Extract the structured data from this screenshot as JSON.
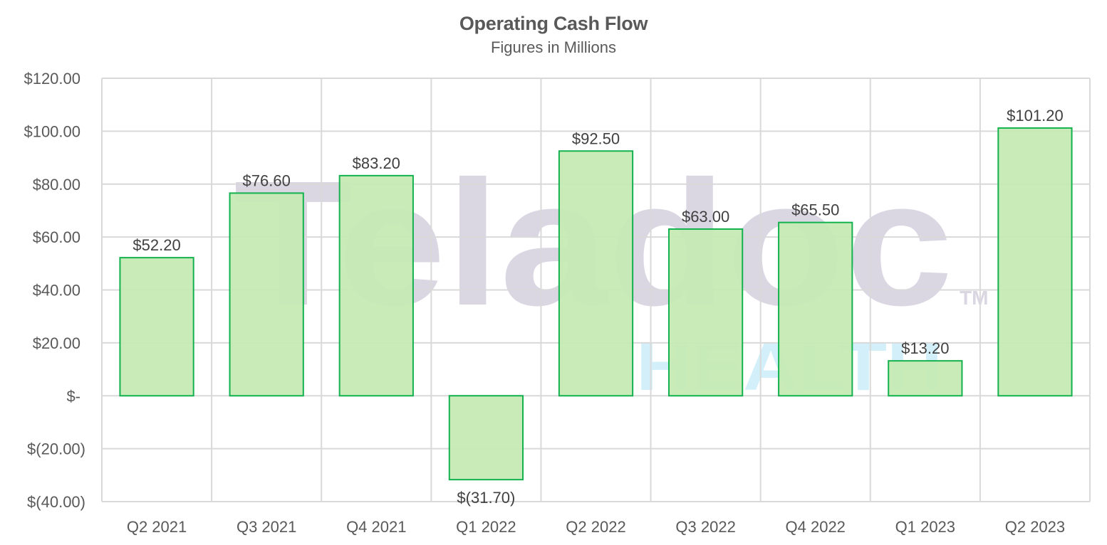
{
  "chart_data": {
    "type": "bar",
    "title": "Operating Cash Flow",
    "subtitle": "Figures in Millions",
    "xlabel": "",
    "ylabel": "",
    "categories": [
      "Q2 2021",
      "Q3 2021",
      "Q4 2021",
      "Q1 2022",
      "Q2 2022",
      "Q3 2022",
      "Q4 2022",
      "Q1 2023",
      "Q2 2023"
    ],
    "values": [
      52.2,
      76.6,
      83.2,
      -31.7,
      92.5,
      63.0,
      65.5,
      13.2,
      101.2
    ],
    "data_labels": [
      "$52.20",
      "$76.60",
      "$83.20",
      "$(31.70)",
      "$92.50",
      "$63.00",
      "$65.50",
      "$13.20",
      "$101.20"
    ],
    "ylim": [
      -40,
      120
    ],
    "yticks": [
      120,
      100,
      80,
      60,
      40,
      20,
      0,
      -20,
      -40
    ],
    "ytick_labels": [
      "$120.00",
      "$100.00",
      "$80.00",
      "$60.00",
      "$40.00",
      "$20.00",
      "$-",
      "$(20.00)",
      "$(40.00)"
    ],
    "grid": true,
    "legend": null,
    "watermark": {
      "text": "Teladoc",
      "sub_text": "HEALTH",
      "trademark": "TM"
    },
    "colors": {
      "bar_fill": "#c5eab4",
      "bar_border": "#13b24f",
      "grid": "#d9d9d9",
      "text": "#595959",
      "watermark_main": "#dad7e3",
      "watermark_sub": "#d3f0fa"
    }
  }
}
